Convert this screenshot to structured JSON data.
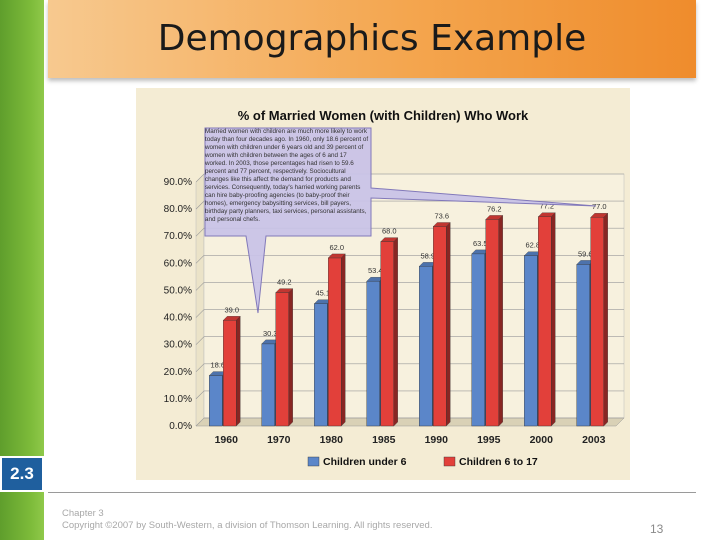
{
  "slide": {
    "title": "Demographics Example",
    "section": "2.3",
    "footer_line1": "Chapter 3",
    "footer_line2": "Copyright ©2007 by South-Western, a division of Thomson Learning. All rights reserved.",
    "page_number": "13"
  },
  "colors": {
    "series_a": "#5b86c9",
    "series_b": "#e2403a",
    "background": "#f4ecd4",
    "callout": "#c9c3e8"
  },
  "chart_data": {
    "type": "bar",
    "title": "% of Married Women (with Children) Who Work",
    "categories": [
      "1960",
      "1970",
      "1980",
      "1985",
      "1990",
      "1995",
      "2000",
      "2003"
    ],
    "series": [
      {
        "name": "Children under 6",
        "values": [
          18.6,
          30.3,
          45.1,
          53.4,
          58.9,
          63.5,
          62.8,
          59.6
        ]
      },
      {
        "name": "Children 6 to 17",
        "values": [
          39.0,
          49.2,
          62.0,
          68.0,
          73.6,
          76.2,
          77.2,
          77.0
        ]
      }
    ],
    "value_labels": {
      "Children under 6": [
        "18.6",
        "30.3",
        "45.1",
        "53.4",
        "58.9",
        "63.5",
        "62.8",
        "59.6"
      ],
      "Children 6 to 17": [
        "39.0",
        "49.2",
        "62.0",
        "68.0",
        "73.6",
        "76.2",
        "77.2",
        "77.0"
      ]
    },
    "ylim": [
      0,
      90
    ],
    "yticks": [
      "0.0%",
      "10.0%",
      "20.0%",
      "30.0%",
      "40.0%",
      "50.0%",
      "60.0%",
      "70.0%",
      "80.0%",
      "90.0%"
    ],
    "ytick_values": [
      0,
      10,
      20,
      30,
      40,
      50,
      60,
      70,
      80,
      90
    ],
    "grid": true,
    "legend_position": "bottom",
    "annotation": "Married women with children are much more likely to work today than four decades ago. In 1960, only 18.6 percent of women with children under 6 years old and 39 percent of women with children between the ages of 6 and 17 worked. In 2003, those percentages had risen to 59.6 percent and 77 percent, respectively. Sociocultural changes like this affect the demand for products and services. Consequently, today's harried working parents can hire baby-proofing agencies (to baby-proof their homes), emergency babysitting services, bill payers, birthday party planners, taxi services, personal assistants, and personal chefs."
  }
}
